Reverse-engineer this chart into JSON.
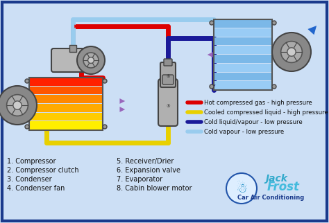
{
  "bg_color": "#ccdff5",
  "border_color": "#1a3a8c",
  "legend_items": [
    {
      "color": "#dd0000",
      "label": "Hot compressed gas - high pressure"
    },
    {
      "color": "#e8d000",
      "label": "Cooled compressed liquid - high pressure"
    },
    {
      "color": "#1a1a99",
      "label": "Cold liquid/vapour - low pressure"
    },
    {
      "color": "#99ccee",
      "label": "Cold vapour - low pressure"
    }
  ],
  "labels_left": [
    "1. Compressor",
    "2. Compressor clutch",
    "3. Condenser",
    "4. Condenser fan"
  ],
  "labels_right": [
    "5. Receiver/Drier",
    "6. Expansion valve",
    "7. Evaporator",
    "8. Cabin blower motor"
  ],
  "font_size_labels": 7.0,
  "font_size_legend": 6.2
}
